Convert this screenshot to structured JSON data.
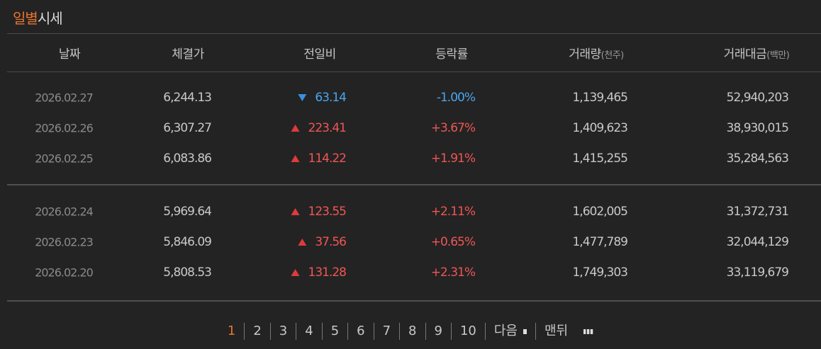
{
  "title": {
    "highlight": "일별",
    "rest": "시세"
  },
  "table": {
    "headers": [
      {
        "label": "날짜"
      },
      {
        "label": "체결가"
      },
      {
        "label": "전일비"
      },
      {
        "label": "등락률"
      },
      {
        "label": "거래량",
        "unit": "(천주)"
      },
      {
        "label": "거래대금",
        "unit": "(백만)"
      }
    ],
    "groups": [
      [
        [
          "2026.02.27",
          "6,244.13",
          "63.14",
          "-1.00%",
          "1,139,465",
          "52,940,203"
        ],
        [
          "2026.02.26",
          "6,307.27",
          "223.41",
          "+3.67%",
          "1,409,623",
          "38,930,015"
        ],
        [
          "2026.02.25",
          "6,083.86",
          "114.22",
          "+1.91%",
          "1,415,255",
          "35,284,563"
        ]
      ],
      [
        [
          "2026.02.24",
          "5,969.64",
          "123.55",
          "+2.11%",
          "1,602,005",
          "31,372,731"
        ],
        [
          "2026.02.23",
          "5,846.09",
          "37.56",
          "+0.65%",
          "1,477,789",
          "32,044,129"
        ],
        [
          "2026.02.20",
          "5,808.53",
          "131.28",
          "+2.31%",
          "1,749,303",
          "33,119,679"
        ]
      ]
    ]
  },
  "pagination": {
    "pages": [
      1,
      2,
      3,
      4,
      5,
      6,
      7,
      8,
      9,
      10
    ],
    "current": 1,
    "next": "다음",
    "last": "맨뒤"
  }
}
